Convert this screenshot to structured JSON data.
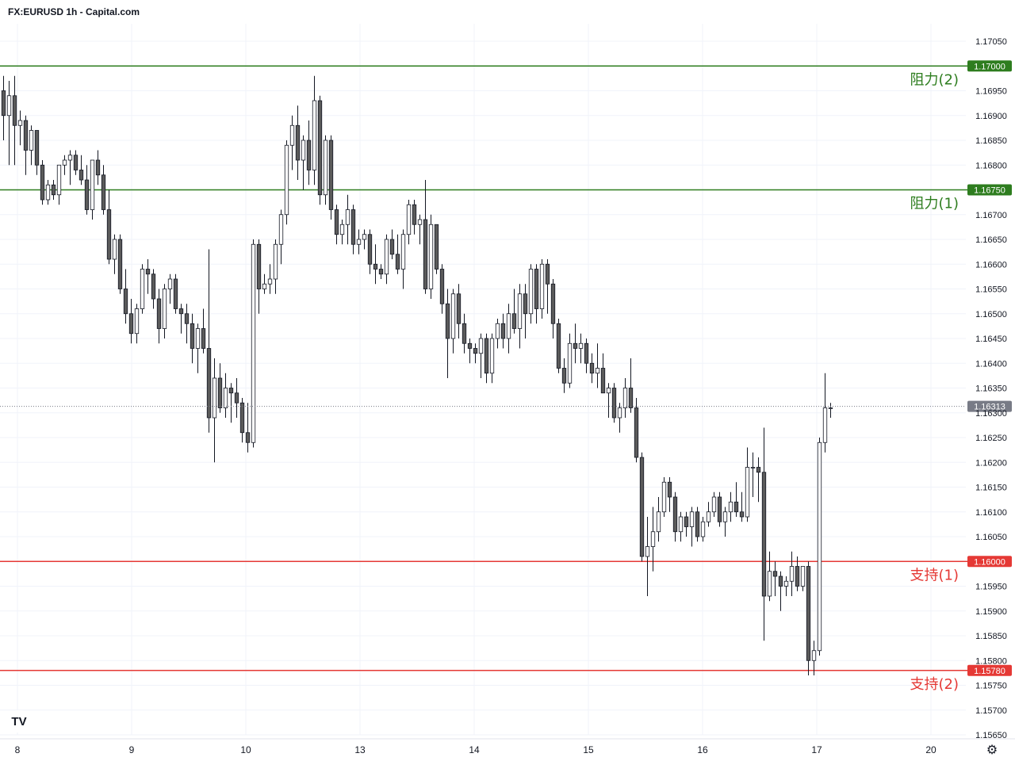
{
  "header": {
    "title": "FX:EURUSD 1h - Capital.com"
  },
  "footer": {
    "logo_text": "TV",
    "settings_icon": "gear-icon"
  },
  "colors": {
    "resistance": "#2e7d1f",
    "support": "#e53935",
    "candle_stroke": "#131722",
    "bear_fill": "#5b5b5b",
    "bull_fill": "#ffffff",
    "grid": "#f0f3fa",
    "last_price": "#787b86"
  },
  "chart_data": {
    "type": "candlestick",
    "symbol": "FX:EURUSD",
    "interval": "1h",
    "title": "FX:EURUSD 1h - Capital.com",
    "ylim": [
      1.1565,
      1.1705
    ],
    "y_ticks": [
      "1.17050",
      "1.16950",
      "1.16900",
      "1.16850",
      "1.16800",
      "1.16700",
      "1.16650",
      "1.16600",
      "1.16550",
      "1.16500",
      "1.16450",
      "1.16400",
      "1.16350",
      "1.16300",
      "1.16250",
      "1.16200",
      "1.16150",
      "1.16100",
      "1.16050",
      "1.15950",
      "1.15900",
      "1.15850",
      "1.15800",
      "1.15750",
      "1.15700",
      "1.15650"
    ],
    "x_ticks": [
      "8",
      "9",
      "10",
      "13",
      "14",
      "15",
      "16",
      "17",
      "20"
    ],
    "levels": [
      {
        "label": "阻力(2)",
        "value": 1.17,
        "price_label": "1.17000",
        "kind": "resistance"
      },
      {
        "label": "阻力(1)",
        "value": 1.1675,
        "price_label": "1.16750",
        "kind": "resistance"
      },
      {
        "label": "支持(1)",
        "value": 1.16,
        "price_label": "1.16000",
        "kind": "support"
      },
      {
        "label": "支持(2)",
        "value": 1.1578,
        "price_label": "1.15780",
        "kind": "support"
      }
    ],
    "last_price": {
      "value": 1.16313,
      "label": "1.16313"
    },
    "candles": [
      [
        1.1695,
        1.1698,
        1.1685,
        1.169
      ],
      [
        1.169,
        1.1697,
        1.168,
        1.1694
      ],
      [
        1.1694,
        1.1698,
        1.168,
        1.1688
      ],
      [
        1.1688,
        1.1691,
        1.1684,
        1.1689
      ],
      [
        1.1689,
        1.169,
        1.1678,
        1.1683
      ],
      [
        1.1683,
        1.1688,
        1.168,
        1.1687
      ],
      [
        1.1687,
        1.1687,
        1.1678,
        1.168
      ],
      [
        1.168,
        1.1681,
        1.1672,
        1.1673
      ],
      [
        1.1673,
        1.1677,
        1.1672,
        1.1676
      ],
      [
        1.1676,
        1.1677,
        1.1673,
        1.1674
      ],
      [
        1.1674,
        1.168,
        1.1672,
        1.168
      ],
      [
        1.168,
        1.1682,
        1.1678,
        1.1681
      ],
      [
        1.1681,
        1.1683,
        1.1676,
        1.1682
      ],
      [
        1.1682,
        1.1683,
        1.1678,
        1.1679
      ],
      [
        1.1679,
        1.1682,
        1.1676,
        1.1677
      ],
      [
        1.1677,
        1.168,
        1.167,
        1.1671
      ],
      [
        1.1671,
        1.1681,
        1.1669,
        1.1681
      ],
      [
        1.1681,
        1.1683,
        1.1676,
        1.1678
      ],
      [
        1.1678,
        1.168,
        1.167,
        1.1671
      ],
      [
        1.1671,
        1.1675,
        1.166,
        1.1661
      ],
      [
        1.1661,
        1.1666,
        1.1658,
        1.1665
      ],
      [
        1.1665,
        1.1666,
        1.1654,
        1.1655
      ],
      [
        1.1655,
        1.1659,
        1.1648,
        1.165
      ],
      [
        1.165,
        1.1653,
        1.1644,
        1.1646
      ],
      [
        1.1646,
        1.1652,
        1.1644,
        1.1651
      ],
      [
        1.1651,
        1.166,
        1.165,
        1.1659
      ],
      [
        1.1659,
        1.1661,
        1.1654,
        1.1658
      ],
      [
        1.1658,
        1.1659,
        1.1651,
        1.1653
      ],
      [
        1.1653,
        1.1655,
        1.1644,
        1.1647
      ],
      [
        1.1647,
        1.1656,
        1.1645,
        1.1655
      ],
      [
        1.1655,
        1.1658,
        1.1652,
        1.1657
      ],
      [
        1.1657,
        1.1658,
        1.165,
        1.1651
      ],
      [
        1.1651,
        1.1652,
        1.1646,
        1.165
      ],
      [
        1.165,
        1.1652,
        1.1644,
        1.1648
      ],
      [
        1.1648,
        1.165,
        1.164,
        1.1643
      ],
      [
        1.1643,
        1.1648,
        1.1638,
        1.1647
      ],
      [
        1.1647,
        1.1651,
        1.1642,
        1.1643
      ],
      [
        1.1643,
        1.1663,
        1.1626,
        1.1629
      ],
      [
        1.1629,
        1.1641,
        1.162,
        1.1637
      ],
      [
        1.1637,
        1.164,
        1.163,
        1.1631
      ],
      [
        1.1631,
        1.1638,
        1.1629,
        1.1635
      ],
      [
        1.1635,
        1.1636,
        1.1628,
        1.1634
      ],
      [
        1.1634,
        1.1637,
        1.1629,
        1.1632
      ],
      [
        1.1632,
        1.1633,
        1.1624,
        1.1626
      ],
      [
        1.1626,
        1.1632,
        1.1622,
        1.1624
      ],
      [
        1.1624,
        1.1665,
        1.1623,
        1.1664
      ],
      [
        1.1664,
        1.1665,
        1.165,
        1.1655
      ],
      [
        1.1655,
        1.1658,
        1.1654,
        1.1656
      ],
      [
        1.1656,
        1.166,
        1.1654,
        1.1657
      ],
      [
        1.1657,
        1.1665,
        1.1654,
        1.1664
      ],
      [
        1.1664,
        1.1671,
        1.166,
        1.167
      ],
      [
        1.167,
        1.1685,
        1.1668,
        1.1684
      ],
      [
        1.1684,
        1.169,
        1.1679,
        1.1688
      ],
      [
        1.1688,
        1.1692,
        1.1677,
        1.1681
      ],
      [
        1.1681,
        1.1686,
        1.1675,
        1.1685
      ],
      [
        1.1685,
        1.1689,
        1.1676,
        1.1679
      ],
      [
        1.1679,
        1.1698,
        1.1676,
        1.1693
      ],
      [
        1.1693,
        1.1694,
        1.1672,
        1.1674
      ],
      [
        1.1674,
        1.1686,
        1.1672,
        1.1685
      ],
      [
        1.1685,
        1.1686,
        1.1669,
        1.1671
      ],
      [
        1.1671,
        1.1672,
        1.1664,
        1.1666
      ],
      [
        1.1666,
        1.1669,
        1.1664,
        1.1668
      ],
      [
        1.1668,
        1.1674,
        1.1664,
        1.1671
      ],
      [
        1.1671,
        1.1672,
        1.1662,
        1.1664
      ],
      [
        1.1664,
        1.1667,
        1.1662,
        1.1665
      ],
      [
        1.1665,
        1.1667,
        1.1663,
        1.1666
      ],
      [
        1.1666,
        1.1667,
        1.1658,
        1.166
      ],
      [
        1.166,
        1.1664,
        1.1656,
        1.1659
      ],
      [
        1.1659,
        1.166,
        1.1657,
        1.1658
      ],
      [
        1.1658,
        1.1666,
        1.1656,
        1.1665
      ],
      [
        1.1665,
        1.1667,
        1.1661,
        1.1662
      ],
      [
        1.1662,
        1.1666,
        1.1658,
        1.1659
      ],
      [
        1.1659,
        1.1667,
        1.1655,
        1.1666
      ],
      [
        1.1666,
        1.1673,
        1.1664,
        1.1672
      ],
      [
        1.1672,
        1.1673,
        1.1666,
        1.1668
      ],
      [
        1.1668,
        1.167,
        1.1664,
        1.1669
      ],
      [
        1.1669,
        1.1677,
        1.1654,
        1.1655
      ],
      [
        1.1655,
        1.167,
        1.1653,
        1.1668
      ],
      [
        1.1668,
        1.1668,
        1.1658,
        1.1659
      ],
      [
        1.1659,
        1.166,
        1.165,
        1.1652
      ],
      [
        1.1652,
        1.1655,
        1.1637,
        1.1645
      ],
      [
        1.1645,
        1.1655,
        1.1642,
        1.1654
      ],
      [
        1.1654,
        1.1656,
        1.1645,
        1.1648
      ],
      [
        1.1648,
        1.165,
        1.1642,
        1.1644
      ],
      [
        1.1644,
        1.1645,
        1.164,
        1.1643
      ],
      [
        1.1643,
        1.1644,
        1.164,
        1.1642
      ],
      [
        1.1642,
        1.1646,
        1.1637,
        1.1645
      ],
      [
        1.1645,
        1.1646,
        1.1636,
        1.1638
      ],
      [
        1.1638,
        1.1646,
        1.1636,
        1.1645
      ],
      [
        1.1645,
        1.1649,
        1.1643,
        1.1648
      ],
      [
        1.1648,
        1.165,
        1.1643,
        1.1645
      ],
      [
        1.1645,
        1.1652,
        1.1642,
        1.165
      ],
      [
        1.165,
        1.1655,
        1.1646,
        1.1647
      ],
      [
        1.1647,
        1.1656,
        1.1643,
        1.1654
      ],
      [
        1.1654,
        1.1656,
        1.1645,
        1.165
      ],
      [
        1.165,
        1.166,
        1.1648,
        1.1659
      ],
      [
        1.1659,
        1.166,
        1.1648,
        1.1651
      ],
      [
        1.1651,
        1.1661,
        1.1649,
        1.166
      ],
      [
        1.166,
        1.1661,
        1.165,
        1.1656
      ],
      [
        1.1656,
        1.1657,
        1.1645,
        1.1648
      ],
      [
        1.1648,
        1.1649,
        1.1638,
        1.1639
      ],
      [
        1.1639,
        1.1641,
        1.1634,
        1.1636
      ],
      [
        1.1636,
        1.1646,
        1.1635,
        1.1644
      ],
      [
        1.1644,
        1.1648,
        1.164,
        1.1643
      ],
      [
        1.1643,
        1.1646,
        1.164,
        1.1644
      ],
      [
        1.1644,
        1.1645,
        1.1638,
        1.164
      ],
      [
        1.164,
        1.1642,
        1.1636,
        1.1638
      ],
      [
        1.1638,
        1.1644,
        1.1635,
        1.1639
      ],
      [
        1.1639,
        1.1642,
        1.1634,
        1.1634
      ],
      [
        1.1634,
        1.1636,
        1.1629,
        1.1635
      ],
      [
        1.1635,
        1.1636,
        1.1628,
        1.1629
      ],
      [
        1.1629,
        1.1632,
        1.1626,
        1.1631
      ],
      [
        1.1631,
        1.1637,
        1.1629,
        1.1635
      ],
      [
        1.1635,
        1.1641,
        1.163,
        1.1631
      ],
      [
        1.1631,
        1.1633,
        1.162,
        1.1621
      ],
      [
        1.1621,
        1.1622,
        1.16,
        1.1601
      ],
      [
        1.1601,
        1.1609,
        1.1593,
        1.1603
      ],
      [
        1.1603,
        1.1611,
        1.1598,
        1.1606
      ],
      [
        1.1606,
        1.1613,
        1.1604,
        1.161
      ],
      [
        1.161,
        1.1617,
        1.1609,
        1.1616
      ],
      [
        1.1616,
        1.1617,
        1.161,
        1.1613
      ],
      [
        1.1613,
        1.1614,
        1.1604,
        1.1606
      ],
      [
        1.1606,
        1.161,
        1.1604,
        1.1609
      ],
      [
        1.1609,
        1.161,
        1.1605,
        1.1607
      ],
      [
        1.1607,
        1.1611,
        1.1603,
        1.161
      ],
      [
        1.161,
        1.1611,
        1.1604,
        1.1605
      ],
      [
        1.1605,
        1.1609,
        1.1604,
        1.1608
      ],
      [
        1.1608,
        1.1612,
        1.1607,
        1.161
      ],
      [
        1.161,
        1.1614,
        1.1609,
        1.1613
      ],
      [
        1.1613,
        1.1614,
        1.1607,
        1.1608
      ],
      [
        1.1608,
        1.1611,
        1.1605,
        1.161
      ],
      [
        1.161,
        1.1614,
        1.1608,
        1.1612
      ],
      [
        1.1612,
        1.1616,
        1.1609,
        1.161
      ],
      [
        1.161,
        1.1614,
        1.1608,
        1.1609
      ],
      [
        1.1609,
        1.1623,
        1.1608,
        1.1619
      ],
      [
        1.1619,
        1.1622,
        1.1613,
        1.1619
      ],
      [
        1.1619,
        1.1621,
        1.1612,
        1.1618
      ],
      [
        1.1618,
        1.1627,
        1.1584,
        1.1593
      ],
      [
        1.1593,
        1.1602,
        1.1592,
        1.1598
      ],
      [
        1.1598,
        1.16,
        1.1593,
        1.1597
      ],
      [
        1.1597,
        1.1598,
        1.159,
        1.1595
      ],
      [
        1.1595,
        1.1597,
        1.1593,
        1.1596
      ],
      [
        1.1596,
        1.1602,
        1.1593,
        1.1599
      ],
      [
        1.1599,
        1.1601,
        1.1594,
        1.1595
      ],
      [
        1.1595,
        1.1599,
        1.1594,
        1.1599
      ],
      [
        1.1599,
        1.16,
        1.1577,
        1.158
      ],
      [
        1.158,
        1.1584,
        1.1577,
        1.1582
      ],
      [
        1.1582,
        1.1625,
        1.1581,
        1.1624
      ],
      [
        1.1624,
        1.1638,
        1.1622,
        1.1631
      ],
      [
        1.1631,
        1.1632,
        1.1629,
        1.1631
      ]
    ]
  }
}
